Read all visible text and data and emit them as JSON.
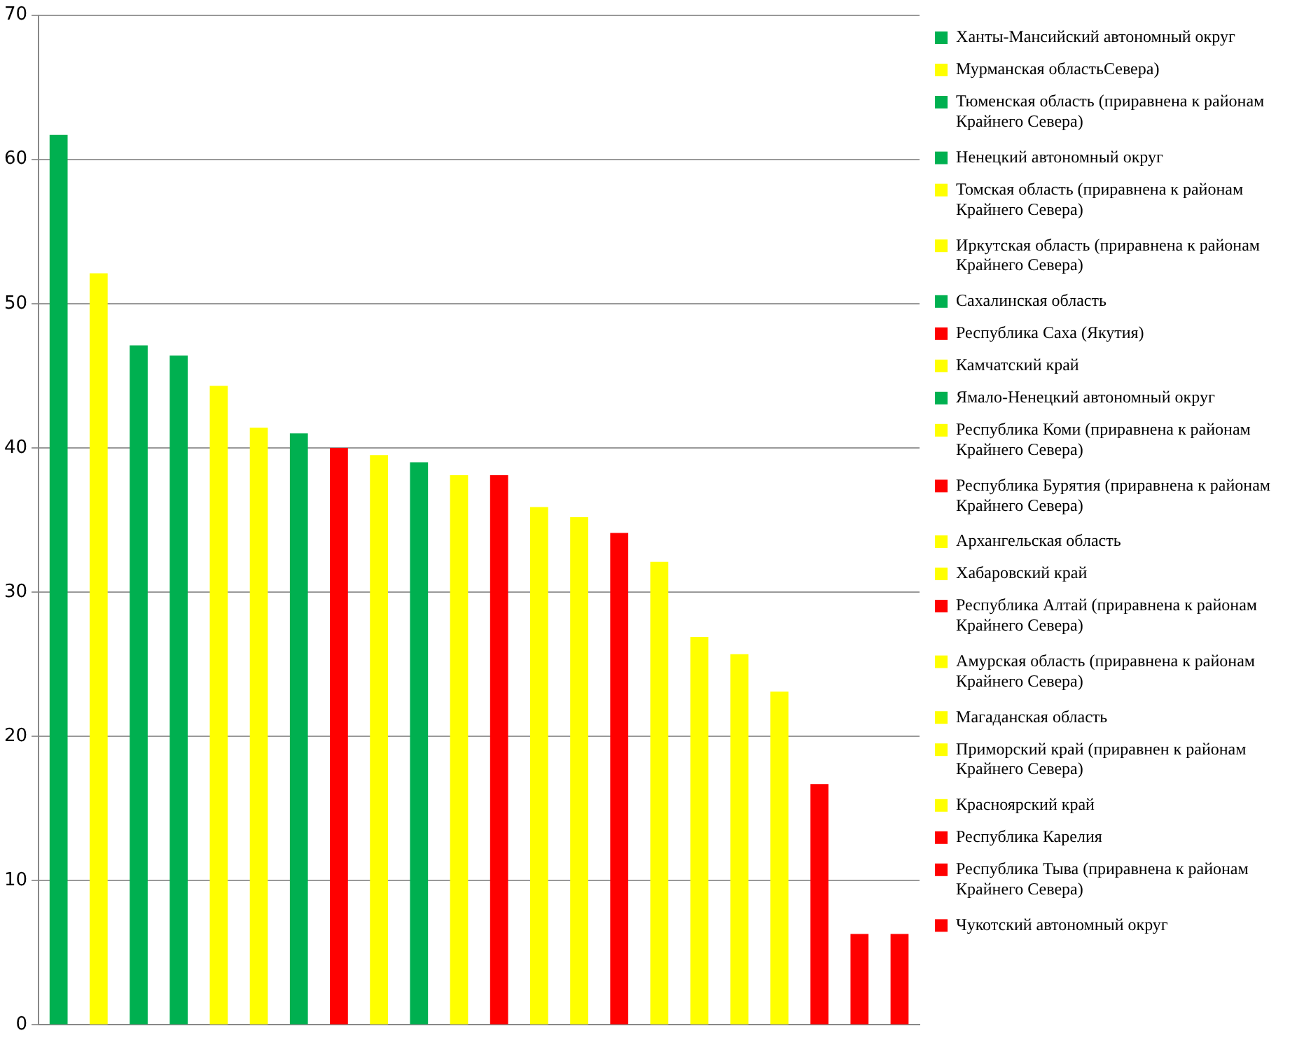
{
  "chart_data": {
    "type": "bar",
    "categories": [
      null,
      null,
      null,
      null,
      null,
      null,
      null,
      null,
      null,
      null,
      null,
      null,
      null,
      null,
      null,
      null,
      null,
      null,
      null,
      null,
      null,
      null
    ],
    "series": [
      {
        "name": "Ханты-Мансийский автономный округ",
        "color": "#00b050",
        "values": [
          61.7,
          null,
          null,
          null,
          null,
          null,
          null,
          null,
          null,
          null,
          null,
          null,
          null,
          null,
          null,
          null,
          null,
          null,
          null,
          null,
          null,
          null
        ]
      },
      {
        "name": "Мурманская областьСевера)",
        "color": "#ffff00",
        "values": [
          null,
          52.1,
          null,
          null,
          null,
          null,
          null,
          null,
          null,
          null,
          null,
          null,
          null,
          null,
          null,
          null,
          null,
          null,
          null,
          null,
          null,
          null
        ]
      },
      {
        "name": "Тюменская область (приравнена к районам Крайнего Севера)",
        "color": "#00b050",
        "values": [
          null,
          null,
          47.1,
          null,
          null,
          null,
          null,
          null,
          null,
          null,
          null,
          null,
          null,
          null,
          null,
          null,
          null,
          null,
          null,
          null,
          null,
          null
        ]
      },
      {
        "name": "Ненецкий автономный округ",
        "color": "#00b050",
        "values": [
          null,
          null,
          null,
          46.4,
          null,
          null,
          null,
          null,
          null,
          null,
          null,
          null,
          null,
          null,
          null,
          null,
          null,
          null,
          null,
          null,
          null,
          null
        ]
      },
      {
        "name": "Томская область (приравнена к районам Крайнего Севера)",
        "color": "#ffff00",
        "values": [
          null,
          null,
          null,
          null,
          44.3,
          null,
          null,
          null,
          null,
          null,
          null,
          null,
          null,
          null,
          null,
          null,
          null,
          null,
          null,
          null,
          null,
          null
        ]
      },
      {
        "name": "Иркутская область (приравнена к районам Крайнего Севера)",
        "color": "#ffff00",
        "values": [
          null,
          null,
          null,
          null,
          null,
          41.4,
          null,
          null,
          null,
          null,
          null,
          null,
          null,
          null,
          null,
          null,
          null,
          null,
          null,
          null,
          null,
          null
        ]
      },
      {
        "name": "Сахалинская область",
        "color": "#00b050",
        "values": [
          null,
          null,
          null,
          null,
          null,
          null,
          41.0,
          null,
          null,
          null,
          null,
          null,
          null,
          null,
          null,
          null,
          null,
          null,
          null,
          null,
          null,
          null
        ]
      },
      {
        "name": "Республика Саха (Якутия)",
        "color": "#ff0000",
        "values": [
          null,
          null,
          null,
          null,
          null,
          null,
          null,
          40.0,
          null,
          null,
          null,
          null,
          null,
          null,
          null,
          null,
          null,
          null,
          null,
          null,
          null,
          null
        ]
      },
      {
        "name": "Камчатский край",
        "color": "#ffff00",
        "values": [
          null,
          null,
          null,
          null,
          null,
          null,
          null,
          null,
          39.5,
          null,
          null,
          null,
          null,
          null,
          null,
          null,
          null,
          null,
          null,
          null,
          null,
          null
        ]
      },
      {
        "name": "Ямало-Ненецкий автономный округ",
        "color": "#00b050",
        "values": [
          null,
          null,
          null,
          null,
          null,
          null,
          null,
          null,
          null,
          39.0,
          null,
          null,
          null,
          null,
          null,
          null,
          null,
          null,
          null,
          null,
          null,
          null
        ]
      },
      {
        "name": "Республика Коми (приравнена к районам Крайнего Севера)",
        "color": "#ffff00",
        "values": [
          null,
          null,
          null,
          null,
          null,
          null,
          null,
          null,
          null,
          null,
          38.1,
          null,
          null,
          null,
          null,
          null,
          null,
          null,
          null,
          null,
          null,
          null
        ]
      },
      {
        "name": "Республика Бурятия (приравнена к районам Крайнего Севера)",
        "color": "#ff0000",
        "values": [
          null,
          null,
          null,
          null,
          null,
          null,
          null,
          null,
          null,
          null,
          null,
          38.1,
          null,
          null,
          null,
          null,
          null,
          null,
          null,
          null,
          null,
          null
        ]
      },
      {
        "name": "Архангельская область",
        "color": "#ffff00",
        "values": [
          null,
          null,
          null,
          null,
          null,
          null,
          null,
          null,
          null,
          null,
          null,
          null,
          35.9,
          null,
          null,
          null,
          null,
          null,
          null,
          null,
          null,
          null
        ]
      },
      {
        "name": "Хабаровский край",
        "color": "#ffff00",
        "values": [
          null,
          null,
          null,
          null,
          null,
          null,
          null,
          null,
          null,
          null,
          null,
          null,
          null,
          35.2,
          null,
          null,
          null,
          null,
          null,
          null,
          null,
          null
        ]
      },
      {
        "name": "Республика Алтай (приравнена к районам Крайнего Севера)",
        "color": "#ff0000",
        "values": [
          null,
          null,
          null,
          null,
          null,
          null,
          null,
          null,
          null,
          null,
          null,
          null,
          null,
          null,
          34.1,
          null,
          null,
          null,
          null,
          null,
          null,
          null
        ]
      },
      {
        "name": "Амурская область (приравнена к районам Крайнего Севера)",
        "color": "#ffff00",
        "values": [
          null,
          null,
          null,
          null,
          null,
          null,
          null,
          null,
          null,
          null,
          null,
          null,
          null,
          null,
          null,
          32.1,
          null,
          null,
          null,
          null,
          null,
          null
        ]
      },
      {
        "name": "Магаданская область",
        "color": "#ffff00",
        "values": [
          null,
          null,
          null,
          null,
          null,
          null,
          null,
          null,
          null,
          null,
          null,
          null,
          null,
          null,
          null,
          null,
          26.9,
          null,
          null,
          null,
          null,
          null
        ]
      },
      {
        "name": "Приморский край (приравнен к районам Крайнего Севера)",
        "color": "#ffff00",
        "values": [
          null,
          null,
          null,
          null,
          null,
          null,
          null,
          null,
          null,
          null,
          null,
          null,
          null,
          null,
          null,
          null,
          null,
          25.7,
          null,
          null,
          null,
          null
        ]
      },
      {
        "name": "Красноярский край",
        "color": "#ffff00",
        "values": [
          null,
          null,
          null,
          null,
          null,
          null,
          null,
          null,
          null,
          null,
          null,
          null,
          null,
          null,
          null,
          null,
          null,
          null,
          23.1,
          null,
          null,
          null
        ]
      },
      {
        "name": "Республика Карелия",
        "color": "#ff0000",
        "values": [
          null,
          null,
          null,
          null,
          null,
          null,
          null,
          null,
          null,
          null,
          null,
          null,
          null,
          null,
          null,
          null,
          null,
          null,
          null,
          16.7,
          null,
          null
        ]
      },
      {
        "name": "Республика Тыва (приравнена к районам Крайнего Севера)",
        "color": "#ff0000",
        "values": [
          null,
          null,
          null,
          null,
          null,
          null,
          null,
          null,
          null,
          null,
          null,
          null,
          null,
          null,
          null,
          null,
          null,
          null,
          null,
          null,
          6.3,
          null
        ]
      },
      {
        "name": "Чукотский автономный округ",
        "color": "#ff0000",
        "values": [
          null,
          null,
          null,
          null,
          null,
          null,
          null,
          null,
          null,
          null,
          null,
          null,
          null,
          null,
          null,
          null,
          null,
          null,
          null,
          null,
          null,
          6.3
        ]
      }
    ],
    "ylim": [
      0,
      70
    ],
    "yticks": [
      0,
      10,
      20,
      30,
      40,
      50,
      60,
      70
    ],
    "grid": "y",
    "legend": "right",
    "tick_labels": "y"
  }
}
